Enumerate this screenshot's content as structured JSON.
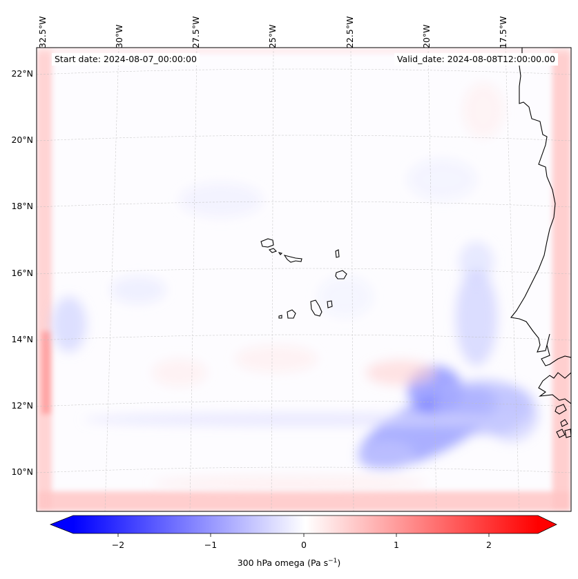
{
  "map": {
    "start_label": "Start date: 2024-08-07_00:00:00",
    "valid_label": "Valid_date: 2024-08-08T12:00:00.00",
    "longitude_labels": [
      "32.5°W",
      "30°W",
      "27.5°W",
      "25°W",
      "22.5°W",
      "20°W",
      "17.5°W"
    ],
    "latitude_labels": [
      "22°N",
      "20°N",
      "18°N",
      "16°N",
      "14°N",
      "12°N",
      "10°N"
    ],
    "features": [
      "Cape Verde islands",
      "West African coastline"
    ]
  },
  "colorbar": {
    "title_text": "300 hPa omega (Pa s",
    "title_superscript": "−1",
    "title_suffix": ")",
    "ticks": [
      "−2",
      "−1",
      "0",
      "1",
      "2"
    ],
    "range": [
      -2.6,
      2.6
    ],
    "colormap": "bwr",
    "color_low": "#0000ff",
    "color_mid": "#ffffff",
    "color_high": "#ff0000"
  }
}
